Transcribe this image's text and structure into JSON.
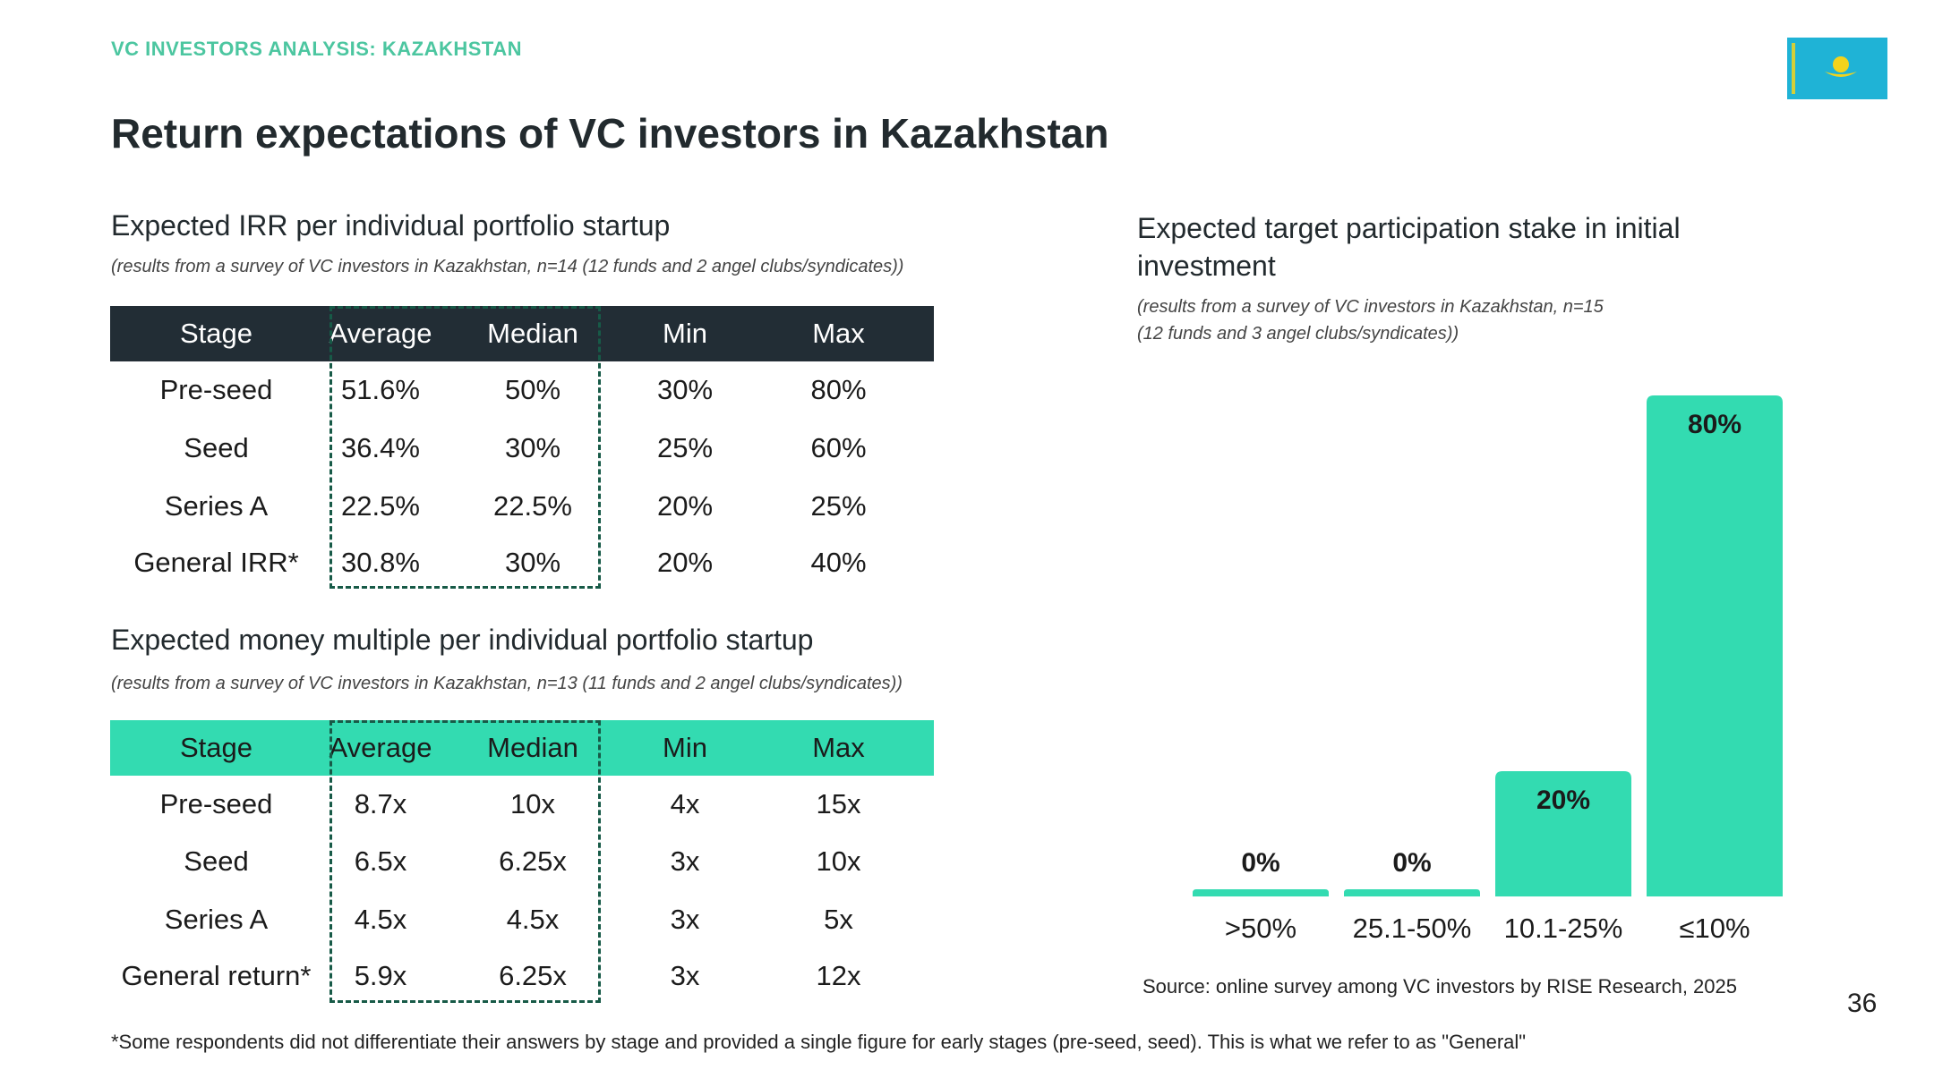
{
  "header": {
    "eyebrow": "VC INVESTORS ANALYSIS: KAZAKHSTAN",
    "title": "Return expectations of VC investors in Kazakhstan"
  },
  "flag": {
    "icon": "kazakhstan-flag-icon",
    "color": "#1fb3d6",
    "emblem_color": "#f3d31c"
  },
  "irr": {
    "heading": "Expected IRR per individual portfolio startup",
    "note": "(results from a survey of VC investors in Kazakhstan, n=14 (12 funds and 2 angel clubs/syndicates))",
    "columns": [
      "Stage",
      "Average",
      "Median",
      "Min",
      "Max"
    ],
    "rows": [
      [
        "Pre-seed",
        "51.6%",
        "50%",
        "30%",
        "80%"
      ],
      [
        "Seed",
        "36.4%",
        "30%",
        "25%",
        "60%"
      ],
      [
        "Series A",
        "22.5%",
        "22.5%",
        "20%",
        "25%"
      ],
      [
        "General IRR*",
        "30.8%",
        "30%",
        "20%",
        "40%"
      ]
    ],
    "header_color": "#222d35"
  },
  "multiple": {
    "heading": "Expected money multiple per individual portfolio startup",
    "note": "(results from a survey of VC investors in Kazakhstan, n=13 (11 funds and 2 angel clubs/syndicates))",
    "columns": [
      "Stage",
      "Average",
      "Median",
      "Min",
      "Max"
    ],
    "rows": [
      [
        "Pre-seed",
        "8.7x",
        "10x",
        "4x",
        "15x"
      ],
      [
        "Seed",
        "6.5x",
        "6.25x",
        "3x",
        "10x"
      ],
      [
        "Series A",
        "4.5x",
        "4.5x",
        "3x",
        "5x"
      ],
      [
        "General return*",
        "5.9x",
        "6.25x",
        "3x",
        "12x"
      ]
    ],
    "header_color": "#33dbb1"
  },
  "stake": {
    "heading_line1": "Expected target participation stake in initial",
    "heading_line2": "investment",
    "note_line1": "(results from a survey of VC investors in Kazakhstan, n=15",
    "note_line2": "(12 funds and 3 angel clubs/syndicates))"
  },
  "chart_data": {
    "type": "bar",
    "categories": [
      ">50%",
      "25.1-50%",
      "10.1-25%",
      "≤10%"
    ],
    "values": [
      0,
      0,
      20,
      80
    ],
    "data_labels": [
      "0%",
      "0%",
      "20%",
      "80%"
    ],
    "ylim": [
      0,
      80
    ],
    "bar_color": "#33dbb1",
    "grid": false
  },
  "footer": {
    "source": "Source: online survey among VC investors by RISE Research, 2025",
    "page_number": "36",
    "footnote": "*Some respondents did not differentiate their answers by stage and provided a single figure for early stages (pre-seed, seed). This is what we refer to as \"General\""
  }
}
